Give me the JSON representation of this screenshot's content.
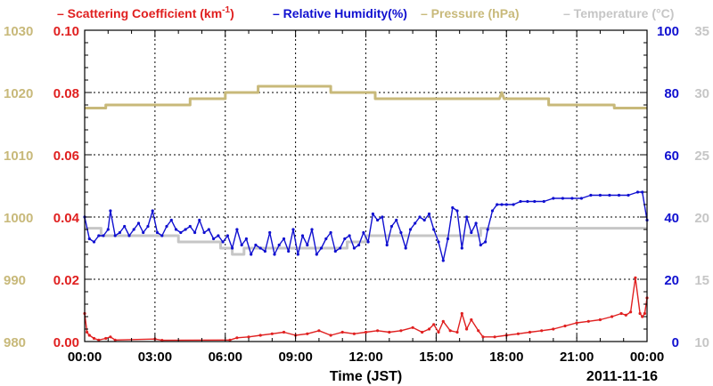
{
  "chart_data": {
    "type": "line",
    "legend": {
      "placement": "top",
      "items": [
        {
          "dash": "–",
          "label": "Scattering Coefficient (km",
          "sup": "-1",
          "close": ")",
          "color": "#e02020"
        },
        {
          "dash": "–",
          "label": "Relative Humidity(%)",
          "sup": "",
          "close": "",
          "color": "#1010d0"
        },
        {
          "dash": "–",
          "label": "Pressure (hPa)",
          "sup": "",
          "close": "",
          "color": "#c8b97a"
        },
        {
          "dash": "–",
          "label": "Temperature (°C)",
          "sup": "",
          "close": "",
          "color": "#c6c6c6"
        }
      ]
    },
    "x_axis": {
      "label": "Time (JST)",
      "range_hours": [
        0,
        24
      ],
      "ticks": [
        "00:00",
        "03:00",
        "06:00",
        "09:00",
        "12:00",
        "15:00",
        "18:00",
        "21:00",
        "00:00"
      ],
      "date_label": "2011-11-16"
    },
    "axes": {
      "pressure": {
        "min": 980,
        "max": 1030,
        "ticks": [
          "980",
          "990",
          "1000",
          "1010",
          "1020",
          "1030"
        ],
        "color": "#c8b97a"
      },
      "scattering": {
        "min": 0,
        "max": 0.1,
        "ticks": [
          "0.00",
          "0.02",
          "0.04",
          "0.06",
          "0.08",
          "0.10"
        ],
        "color": "#e02020"
      },
      "humidity": {
        "min": 0,
        "max": 100,
        "ticks": [
          "0",
          "20",
          "40",
          "60",
          "80",
          "100"
        ],
        "color": "#1010d0"
      },
      "temperature": {
        "min": 10,
        "max": 35,
        "ticks": [
          "10",
          "15",
          "20",
          "25",
          "30",
          "35"
        ],
        "color": "#c6c6c6"
      }
    },
    "grid": true,
    "series": [
      {
        "name": "Pressure (hPa)",
        "axis": "pressure",
        "color": "#c8b97a",
        "x": [
          0,
          0.9,
          0.9,
          4.5,
          4.5,
          6,
          6,
          7.4,
          7.4,
          10.5,
          10.5,
          12.4,
          12.4,
          17.7,
          17.8,
          17.9,
          18.0,
          18.1,
          19.8,
          19.8,
          22.6,
          22.6,
          24
        ],
        "y": [
          1017.5,
          1017.5,
          1018,
          1018,
          1019,
          1019,
          1020,
          1020,
          1021,
          1021,
          1020,
          1020,
          1019,
          1019,
          1020,
          1019,
          1019,
          1019,
          1019,
          1018,
          1018,
          1017.5,
          1017.5
        ]
      },
      {
        "name": "Temperature (°C)",
        "axis": "temperature",
        "color": "#c6c6c6",
        "x": [
          0,
          0.7,
          0.7,
          4.0,
          4.0,
          5.8,
          5.8,
          6.3,
          6.3,
          6.8,
          6.8,
          11.2,
          11.2,
          12.0,
          12.0,
          16.9,
          16.9,
          24
        ],
        "y": [
          19.1,
          19.1,
          18.5,
          18.5,
          18.0,
          18.0,
          17.5,
          17.5,
          17.0,
          17.0,
          17.5,
          17.5,
          18.0,
          18.0,
          18.5,
          18.5,
          19.1,
          19.1
        ]
      },
      {
        "name": "Relative Humidity(%)",
        "axis": "humidity",
        "color": "#1010d0",
        "x": [
          0,
          0.2,
          0.4,
          0.6,
          0.8,
          1.0,
          1.1,
          1.3,
          1.5,
          1.7,
          1.9,
          2.1,
          2.3,
          2.5,
          2.7,
          2.9,
          3.1,
          3.3,
          3.5,
          3.7,
          3.9,
          4.1,
          4.3,
          4.5,
          4.7,
          4.9,
          5.1,
          5.3,
          5.5,
          5.7,
          5.9,
          6.1,
          6.3,
          6.5,
          6.7,
          6.9,
          7.1,
          7.3,
          7.5,
          7.7,
          7.9,
          8.1,
          8.3,
          8.5,
          8.7,
          8.9,
          9.1,
          9.3,
          9.5,
          9.7,
          9.9,
          10.1,
          10.3,
          10.5,
          10.7,
          10.9,
          11.1,
          11.3,
          11.5,
          11.7,
          11.9,
          12.1,
          12.3,
          12.5,
          12.7,
          12.9,
          13.1,
          13.3,
          13.5,
          13.7,
          13.9,
          14.1,
          14.3,
          14.5,
          14.7,
          14.9,
          15.1,
          15.3,
          15.5,
          15.7,
          15.9,
          16.1,
          16.3,
          16.5,
          16.7,
          16.9,
          17.1,
          17.2,
          17.4,
          17.6,
          17.8,
          18.0,
          18.3,
          18.6,
          18.9,
          19.2,
          19.6,
          20.0,
          20.4,
          20.8,
          21.2,
          21.6,
          22.0,
          22.4,
          22.8,
          23.2,
          23.6,
          23.8,
          24.0
        ],
        "y": [
          40,
          33,
          32,
          34,
          34,
          36,
          42,
          34,
          35,
          37,
          34,
          36,
          38,
          35,
          37,
          42,
          35,
          34,
          37,
          39,
          36,
          35,
          36,
          37,
          35,
          39,
          35,
          36,
          33,
          34,
          32,
          34,
          30,
          36,
          31,
          33,
          28,
          31,
          30,
          29,
          35,
          28,
          31,
          33,
          29,
          36,
          28,
          34,
          31,
          36,
          28,
          30,
          33,
          35,
          29,
          30,
          33,
          34,
          30,
          31,
          35,
          32,
          41,
          39,
          40,
          31,
          37,
          39,
          35,
          30,
          36,
          38,
          40,
          39,
          41,
          36,
          32,
          26,
          33,
          43,
          42,
          30,
          40,
          35,
          38,
          31,
          32,
          36,
          42,
          44,
          44,
          44,
          44,
          45,
          45,
          45,
          45,
          46,
          46,
          46,
          46,
          47,
          47,
          47,
          47,
          47,
          48,
          48,
          39
        ]
      },
      {
        "name": "Scattering Coefficient (km-1)",
        "axis": "scattering",
        "color": "#e02020",
        "x": [
          0,
          0.1,
          0.2,
          0.4,
          0.6,
          0.9,
          1.1,
          1.3,
          3.0,
          3.3,
          6.2,
          6.5,
          7.0,
          7.5,
          8.0,
          8.5,
          9.0,
          9.5,
          10.0,
          10.5,
          11.0,
          11.5,
          12.0,
          12.5,
          13.0,
          13.5,
          14.0,
          14.4,
          14.7,
          14.9,
          15.1,
          15.3,
          15.6,
          15.9,
          16.1,
          16.3,
          16.5,
          16.8,
          17.0,
          17.5,
          18.0,
          18.5,
          19.0,
          19.5,
          20.0,
          20.5,
          21.0,
          21.5,
          22.0,
          22.5,
          22.9,
          23.1,
          23.3,
          23.5,
          23.7,
          23.8,
          23.9,
          24.0
        ],
        "y": [
          0.009,
          0.003,
          0.002,
          0.001,
          0.0005,
          0.001,
          0.0015,
          0.0005,
          0.0008,
          0.0004,
          0.0005,
          0.0012,
          0.0015,
          0.002,
          0.0025,
          0.003,
          0.002,
          0.0025,
          0.0035,
          0.002,
          0.003,
          0.0025,
          0.003,
          0.0035,
          0.003,
          0.0035,
          0.0045,
          0.003,
          0.004,
          0.0055,
          0.003,
          0.0065,
          0.0035,
          0.003,
          0.009,
          0.004,
          0.007,
          0.0035,
          0.0015,
          0.0015,
          0.002,
          0.0025,
          0.003,
          0.0035,
          0.004,
          0.005,
          0.006,
          0.0065,
          0.007,
          0.008,
          0.009,
          0.0085,
          0.0095,
          0.0205,
          0.009,
          0.008,
          0.009,
          0.014
        ]
      }
    ]
  }
}
